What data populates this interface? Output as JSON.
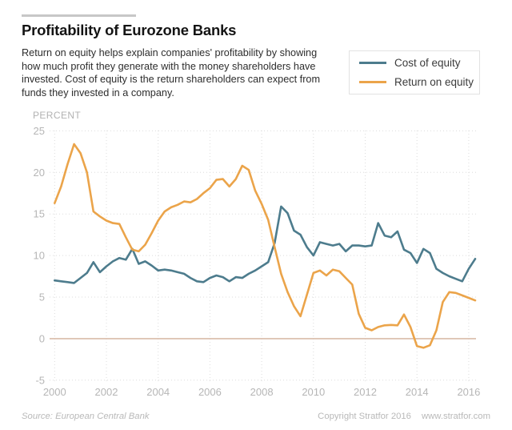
{
  "header": {
    "title": "Profitability of Eurozone Banks",
    "subtitle_lines": [
      "Return on equity helps explain companies' profitability by showing",
      "how much profit they generate with the money shareholders have",
      "invested. Cost of equity is the return shareholders can expect from",
      "funds they invested in a company."
    ],
    "unit_label": "PERCENT"
  },
  "legend": {
    "items": [
      {
        "label": "Cost of equity",
        "color": "#4d7c8d"
      },
      {
        "label": "Return on equity",
        "color": "#eba44a"
      }
    ]
  },
  "footer": {
    "source": "Source: European Central Bank",
    "copyright": "Copyright Stratfor 2016",
    "website": "www.stratfor.com"
  },
  "colors": {
    "cost_of_equity": "#4d7c8d",
    "return_on_equity": "#eba44a",
    "zero_line": "#d9bba9",
    "gridline": "#dcdcdc",
    "axis_text": "#b6b6b6",
    "top_bar": "#c7c7c7"
  },
  "chart_data": {
    "type": "line",
    "title": "Profitability of Eurozone Banks",
    "xlabel": "",
    "ylabel": "PERCENT",
    "xlim": [
      2000,
      2016.25
    ],
    "ylim": [
      -5,
      25
    ],
    "x_ticks": [
      2000,
      2002,
      2004,
      2006,
      2008,
      2010,
      2012,
      2014,
      2016
    ],
    "y_ticks": [
      -5,
      0,
      5,
      10,
      15,
      20,
      25
    ],
    "grid": true,
    "legend_position": "top-right",
    "x": [
      2000,
      2000.25,
      2000.5,
      2000.75,
      2001,
      2001.25,
      2001.5,
      2001.75,
      2002,
      2002.25,
      2002.5,
      2002.75,
      2003,
      2003.25,
      2003.5,
      2003.75,
      2004,
      2004.25,
      2004.5,
      2004.75,
      2005,
      2005.25,
      2005.5,
      2005.75,
      2006,
      2006.25,
      2006.5,
      2006.75,
      2007,
      2007.25,
      2007.5,
      2007.75,
      2008,
      2008.25,
      2008.5,
      2008.75,
      2009,
      2009.25,
      2009.5,
      2009.75,
      2010,
      2010.25,
      2010.5,
      2010.75,
      2011,
      2011.25,
      2011.5,
      2011.75,
      2012,
      2012.25,
      2012.5,
      2012.75,
      2013,
      2013.25,
      2013.5,
      2013.75,
      2014,
      2014.25,
      2014.5,
      2014.75,
      2015,
      2015.25,
      2015.5,
      2015.75,
      2016,
      2016.25
    ],
    "series": [
      {
        "name": "Cost of equity",
        "color": "#4d7c8d",
        "values": [
          7.0,
          6.9,
          6.8,
          6.7,
          7.3,
          7.9,
          9.2,
          8.0,
          8.7,
          9.3,
          9.7,
          9.5,
          10.8,
          9.0,
          9.3,
          8.8,
          8.2,
          8.3,
          8.2,
          8.0,
          7.8,
          7.3,
          6.9,
          6.8,
          7.3,
          7.6,
          7.4,
          6.9,
          7.4,
          7.3,
          7.8,
          8.2,
          8.7,
          9.2,
          11.5,
          15.9,
          15.1,
          13.0,
          12.5,
          11.0,
          10.0,
          11.6,
          11.4,
          11.2,
          11.4,
          10.5,
          11.2,
          11.2,
          11.1,
          11.2,
          13.9,
          12.4,
          12.2,
          12.9,
          10.7,
          10.3,
          9.1,
          10.8,
          10.3,
          8.4,
          7.9,
          7.5,
          7.2,
          6.9,
          8.4,
          9.6
        ]
      },
      {
        "name": "Return on equity",
        "color": "#eba44a",
        "values": [
          16.3,
          18.3,
          21.0,
          23.4,
          22.3,
          20.0,
          15.3,
          14.7,
          14.2,
          13.9,
          13.8,
          12.2,
          10.7,
          10.5,
          11.3,
          12.7,
          14.2,
          15.3,
          15.8,
          16.1,
          16.5,
          16.4,
          16.8,
          17.5,
          18.1,
          19.1,
          19.2,
          18.3,
          19.2,
          20.8,
          20.3,
          17.8,
          16.2,
          14.3,
          11.0,
          7.8,
          5.6,
          3.9,
          2.7,
          5.3,
          7.9,
          8.2,
          7.6,
          8.3,
          8.1,
          7.3,
          6.5,
          3.0,
          1.3,
          1.0,
          1.4,
          1.6,
          1.65,
          1.6,
          2.9,
          1.4,
          -0.9,
          -1.1,
          -0.8,
          1.0,
          4.4,
          5.6,
          5.5,
          5.2,
          4.9,
          4.6
        ]
      }
    ]
  }
}
